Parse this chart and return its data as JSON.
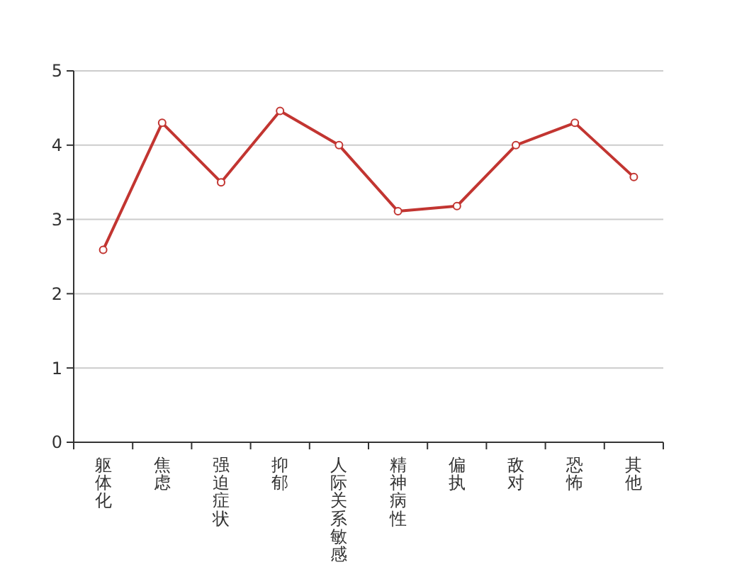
{
  "chart_data": {
    "type": "line",
    "categories": [
      "躯体化",
      "焦虑",
      "强迫症状",
      "抑郁",
      "人际关系敏感",
      "精神病性",
      "偏执",
      "敌对",
      "恐怖",
      "其他"
    ],
    "series": [
      {
        "color": "#c23531",
        "values": [
          2.59,
          4.3,
          3.5,
          4.46,
          4.0,
          3.11,
          3.18,
          4.0,
          4.3,
          3.57
        ]
      }
    ],
    "ylim": [
      0,
      5
    ],
    "yticks": [
      0,
      1,
      2,
      3,
      4,
      5
    ],
    "grid": "y",
    "marker": "circle",
    "line_style": "solid"
  }
}
